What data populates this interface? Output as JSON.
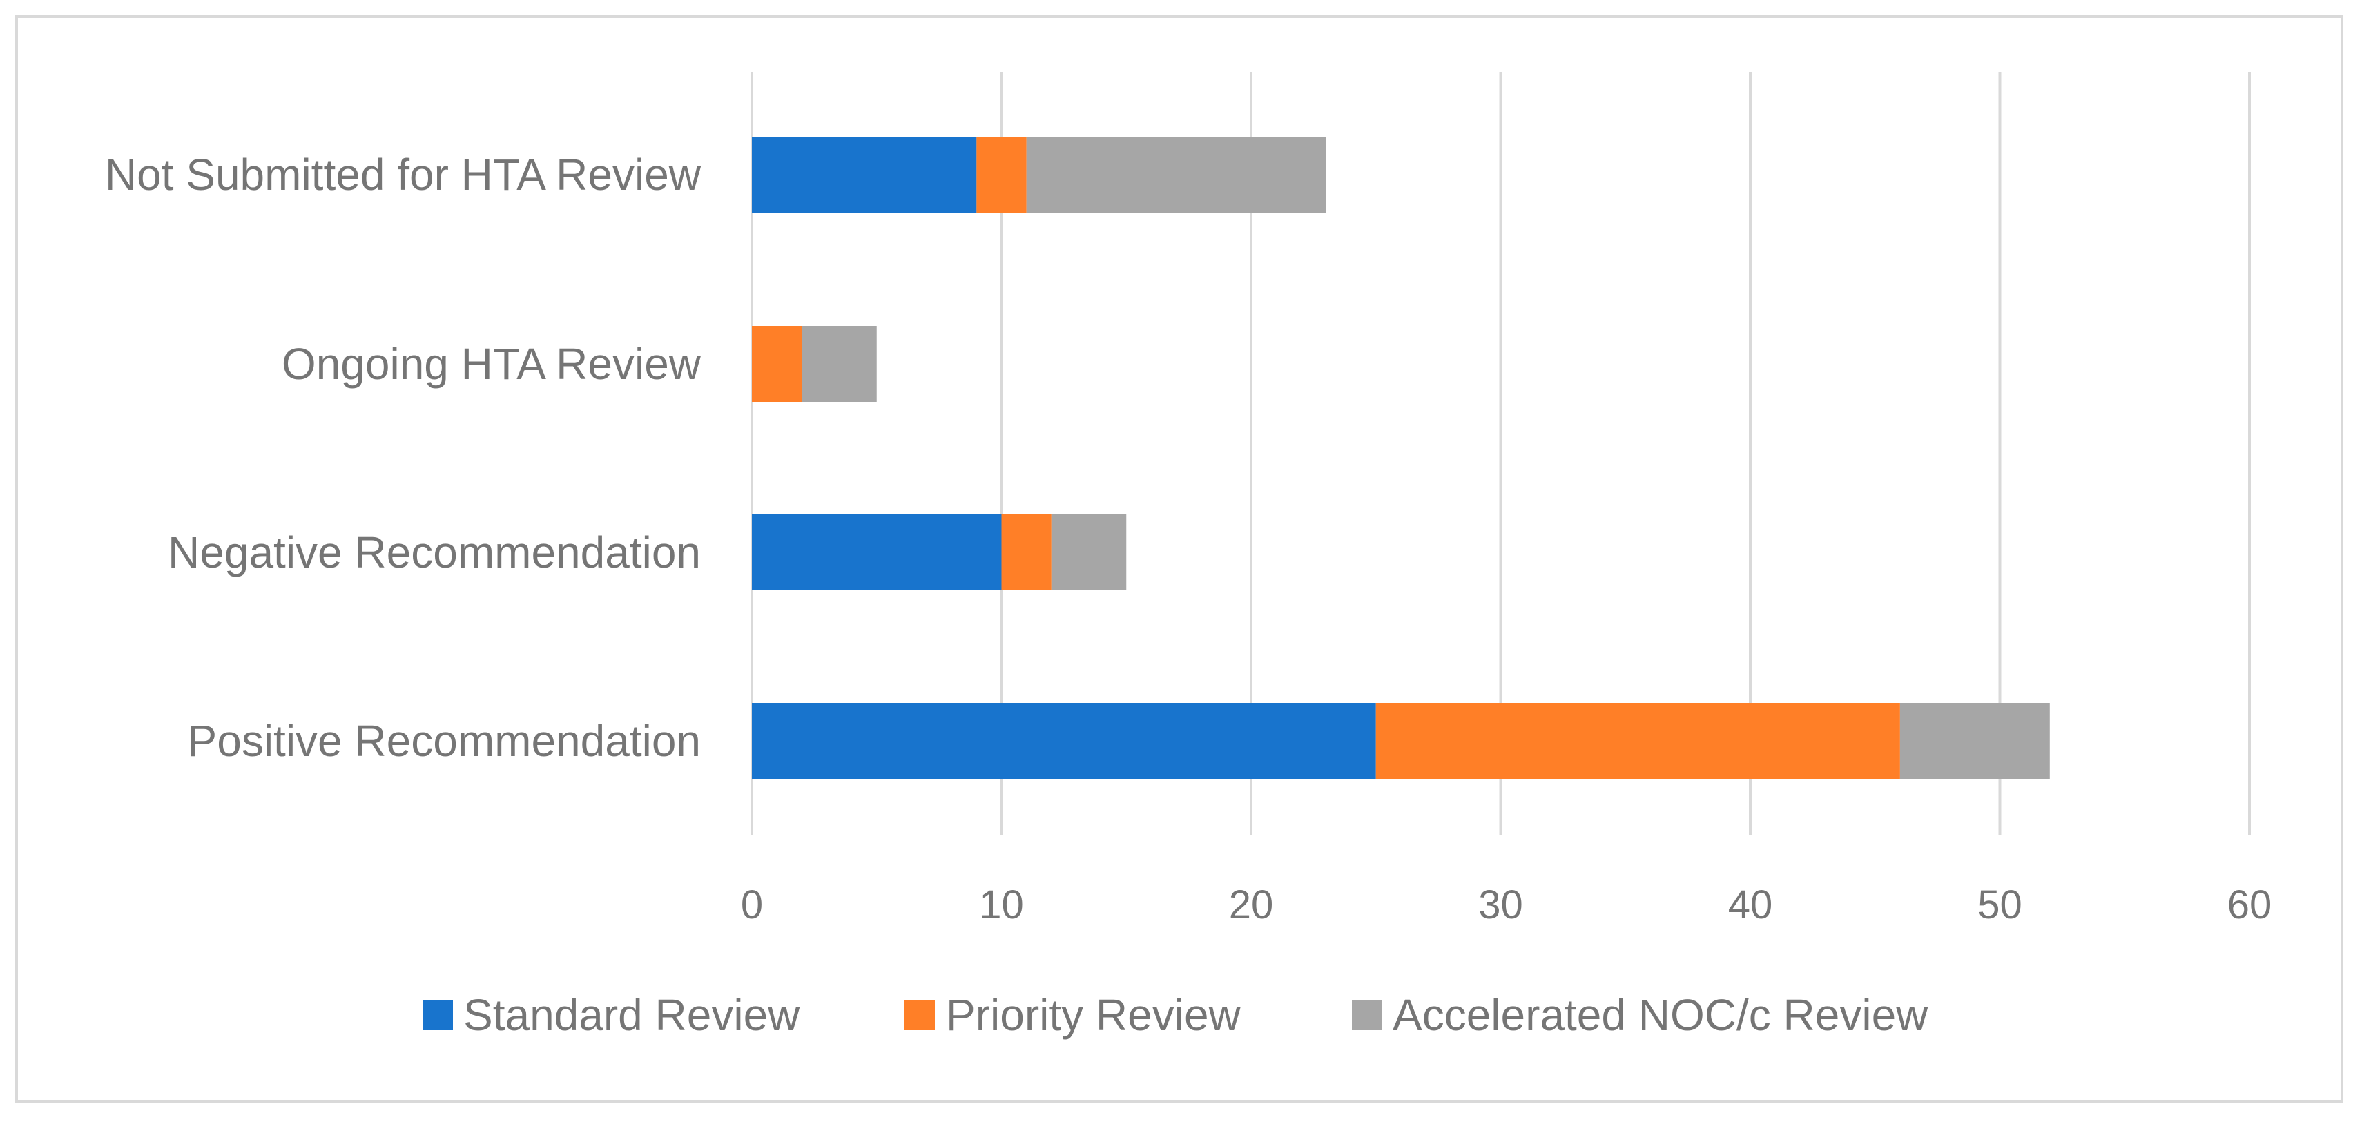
{
  "chart_data": {
    "type": "bar",
    "orientation": "horizontal",
    "stacked": true,
    "title": "",
    "xlabel": "",
    "ylabel": "",
    "xlim": [
      0,
      60
    ],
    "x_ticks": [
      0,
      10,
      20,
      30,
      40,
      50,
      60
    ],
    "categories": [
      "Not Submitted for HTA Review",
      "Ongoing HTA Review",
      "Negative Recommendation",
      "Positive Recommendation"
    ],
    "series": [
      {
        "name": "Standard Review",
        "color": "#1874CD",
        "values": [
          9,
          0,
          10,
          25
        ]
      },
      {
        "name": "Priority Review",
        "color": "#FF7F27",
        "values": [
          2,
          2,
          2,
          21
        ]
      },
      {
        "name": "Accelerated NOC/c Review",
        "color": "#A6A6A6",
        "values": [
          12,
          3,
          3,
          6
        ]
      }
    ],
    "gridlines": true,
    "legend_position": "bottom"
  }
}
